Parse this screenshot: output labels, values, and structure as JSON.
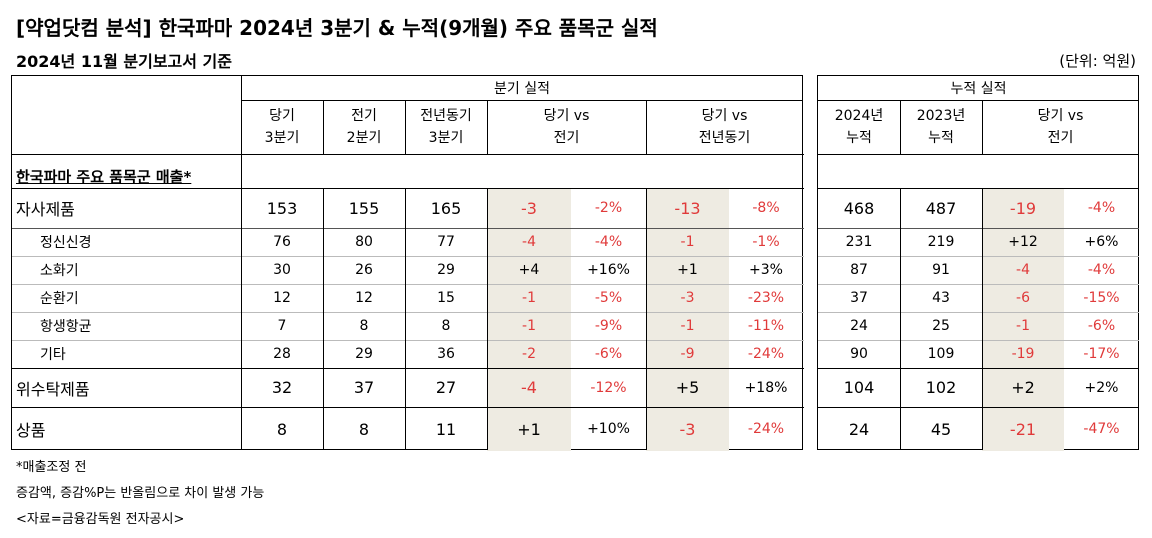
{
  "title": "[약업닷컴 분석] 한국파마 2024년 3분기 & 누적(9개월) 주요 품목군 실적",
  "subtitle": "2024년 11월 분기보고서 기준",
  "unit": "(단위: 억원)",
  "quarter_header": "분기 실적",
  "cum_header": "누적 실적",
  "col_q": [
    {
      "l1": "당기",
      "l2": "3분기"
    },
    {
      "l1": "전기",
      "l2": "2분기"
    },
    {
      "l1": "전년동기",
      "l2": "3분기"
    },
    {
      "l1": "당기 vs",
      "l2": "전기"
    },
    {
      "l1": "당기 vs",
      "l2": "전년동기"
    }
  ],
  "col_c": [
    {
      "l1": "2024년",
      "l2": "누적"
    },
    {
      "l1": "2023년",
      "l2": "누적"
    },
    {
      "l1": "당기 vs",
      "l2": "전기"
    }
  ],
  "section_title": "한국파마 주요 품목군 매출*",
  "rows": [
    {
      "label": "자사제품",
      "v": [
        "153",
        "155",
        "165"
      ],
      "d1": "-3",
      "p1": "-2%",
      "d2": "-13",
      "p2": "-8%",
      "c": [
        "468",
        "487"
      ],
      "cd": "-19",
      "cp": "-4%"
    },
    {
      "label": "정신신경",
      "v": [
        "76",
        "80",
        "77"
      ],
      "d1": "-4",
      "p1": "-4%",
      "d2": "-1",
      "p2": "-1%",
      "c": [
        "231",
        "219"
      ],
      "cd": "+12",
      "cp": "+6%"
    },
    {
      "label": "소화기",
      "v": [
        "30",
        "26",
        "29"
      ],
      "d1": "+4",
      "p1": "+16%",
      "d2": "+1",
      "p2": "+3%",
      "c": [
        "87",
        "91"
      ],
      "cd": "-4",
      "cp": "-4%"
    },
    {
      "label": "순환기",
      "v": [
        "12",
        "12",
        "15"
      ],
      "d1": "-1",
      "p1": "-5%",
      "d2": "-3",
      "p2": "-23%",
      "c": [
        "37",
        "43"
      ],
      "cd": "-6",
      "cp": "-15%"
    },
    {
      "label": "항생항균",
      "v": [
        "7",
        "8",
        "8"
      ],
      "d1": "-1",
      "p1": "-9%",
      "d2": "-1",
      "p2": "-11%",
      "c": [
        "24",
        "25"
      ],
      "cd": "-1",
      "cp": "-6%"
    },
    {
      "label": "기타",
      "v": [
        "28",
        "29",
        "36"
      ],
      "d1": "-2",
      "p1": "-6%",
      "d2": "-9",
      "p2": "-24%",
      "c": [
        "90",
        "109"
      ],
      "cd": "-19",
      "cp": "-17%"
    },
    {
      "label": "위수탁제품",
      "v": [
        "32",
        "37",
        "27"
      ],
      "d1": "-4",
      "p1": "-12%",
      "d2": "+5",
      "p2": "+18%",
      "c": [
        "104",
        "102"
      ],
      "cd": "+2",
      "cp": "+2%"
    },
    {
      "label": "상품",
      "v": [
        "8",
        "8",
        "11"
      ],
      "d1": "+1",
      "p1": "+10%",
      "d2": "-3",
      "p2": "-24%",
      "c": [
        "24",
        "45"
      ],
      "cd": "-21",
      "cp": "-47%"
    }
  ],
  "notes": [
    "*매출조정 전",
    "증감액, 증감%P는 반올림으로 차이 발생 가능",
    "<자료=금융감독원 전자공시>"
  ],
  "colors": {
    "negative": "#e03a3a",
    "highlight": "#eeebe2"
  }
}
